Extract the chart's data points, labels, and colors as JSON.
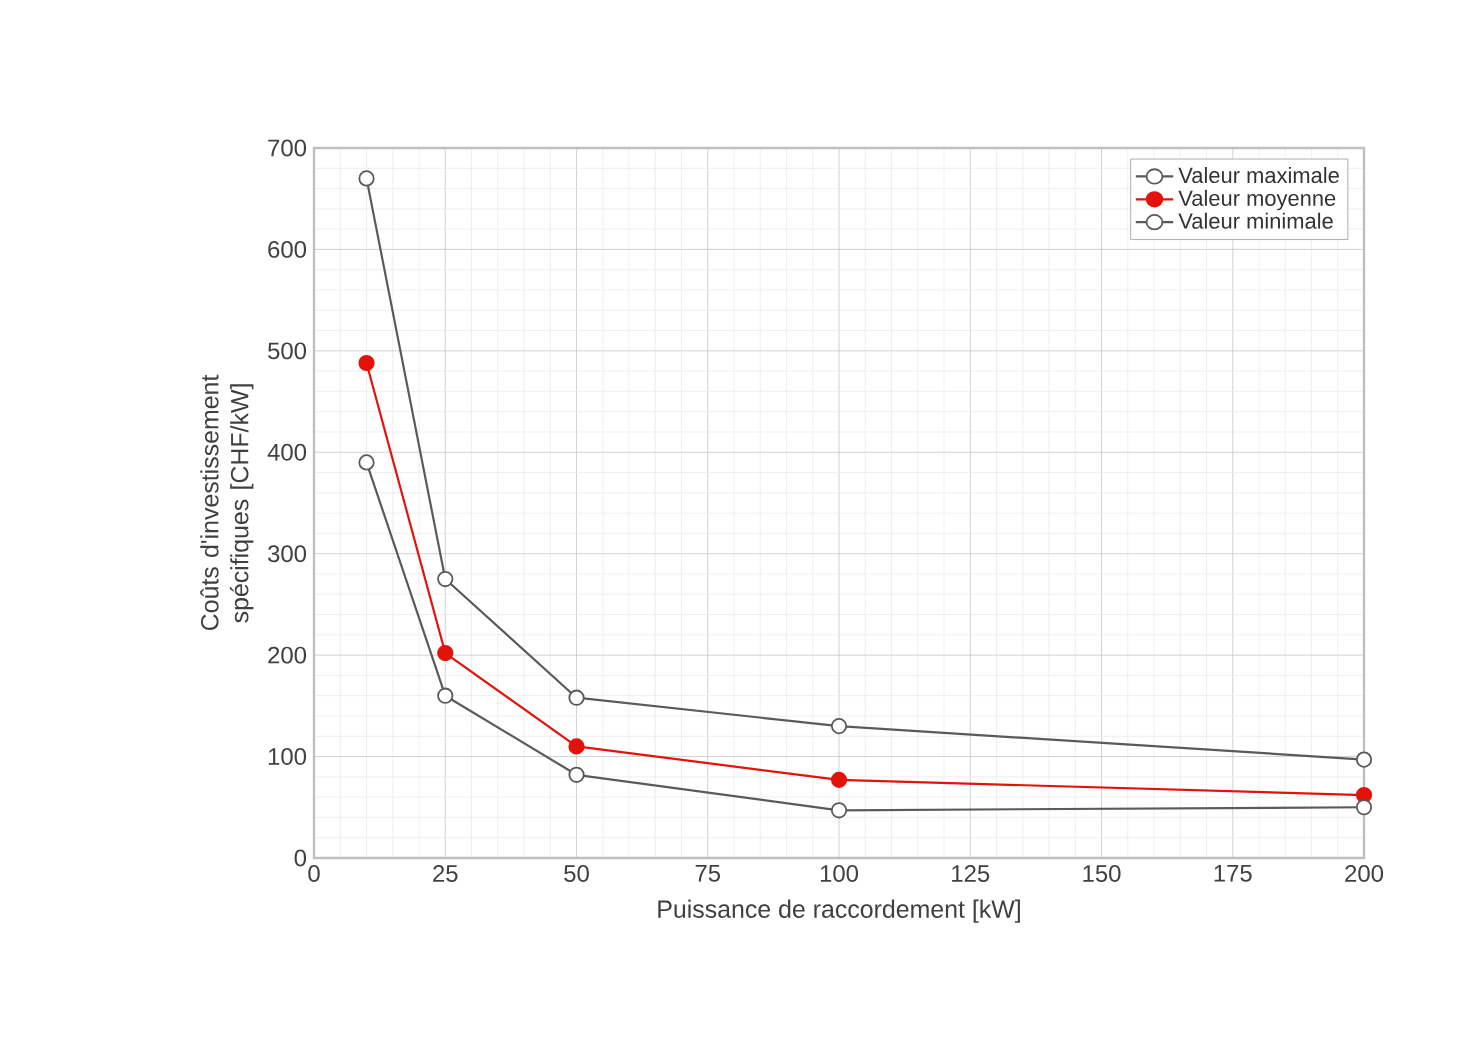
{
  "chart_data": {
    "type": "line",
    "xlabel": "Puissance de raccordement  [kW]",
    "ylabel": "Coûts d'investissement spécifiques [CHF/kW]",
    "x": [
      10,
      25,
      50,
      100,
      200
    ],
    "series": [
      {
        "name": "Valeur maximale",
        "color": "#5a5a5a",
        "values": [
          670,
          275,
          158,
          130,
          97
        ]
      },
      {
        "name": "Valeur moyenne",
        "color": "#e3120b",
        "values": [
          488,
          202,
          110,
          77,
          62
        ]
      },
      {
        "name": "Valeur minimale",
        "color": "#5a5a5a",
        "values": [
          390,
          160,
          82,
          47,
          50
        ]
      }
    ],
    "xlim": [
      0,
      200
    ],
    "xticks": [
      0,
      25,
      50,
      75,
      100,
      125,
      150,
      175,
      200
    ],
    "ylim": [
      0,
      700
    ],
    "yticks": [
      0,
      100,
      200,
      300,
      400,
      500,
      600,
      700
    ],
    "grid": true,
    "legend": "top right",
    "marker": "circle",
    "line_style": "solid"
  }
}
